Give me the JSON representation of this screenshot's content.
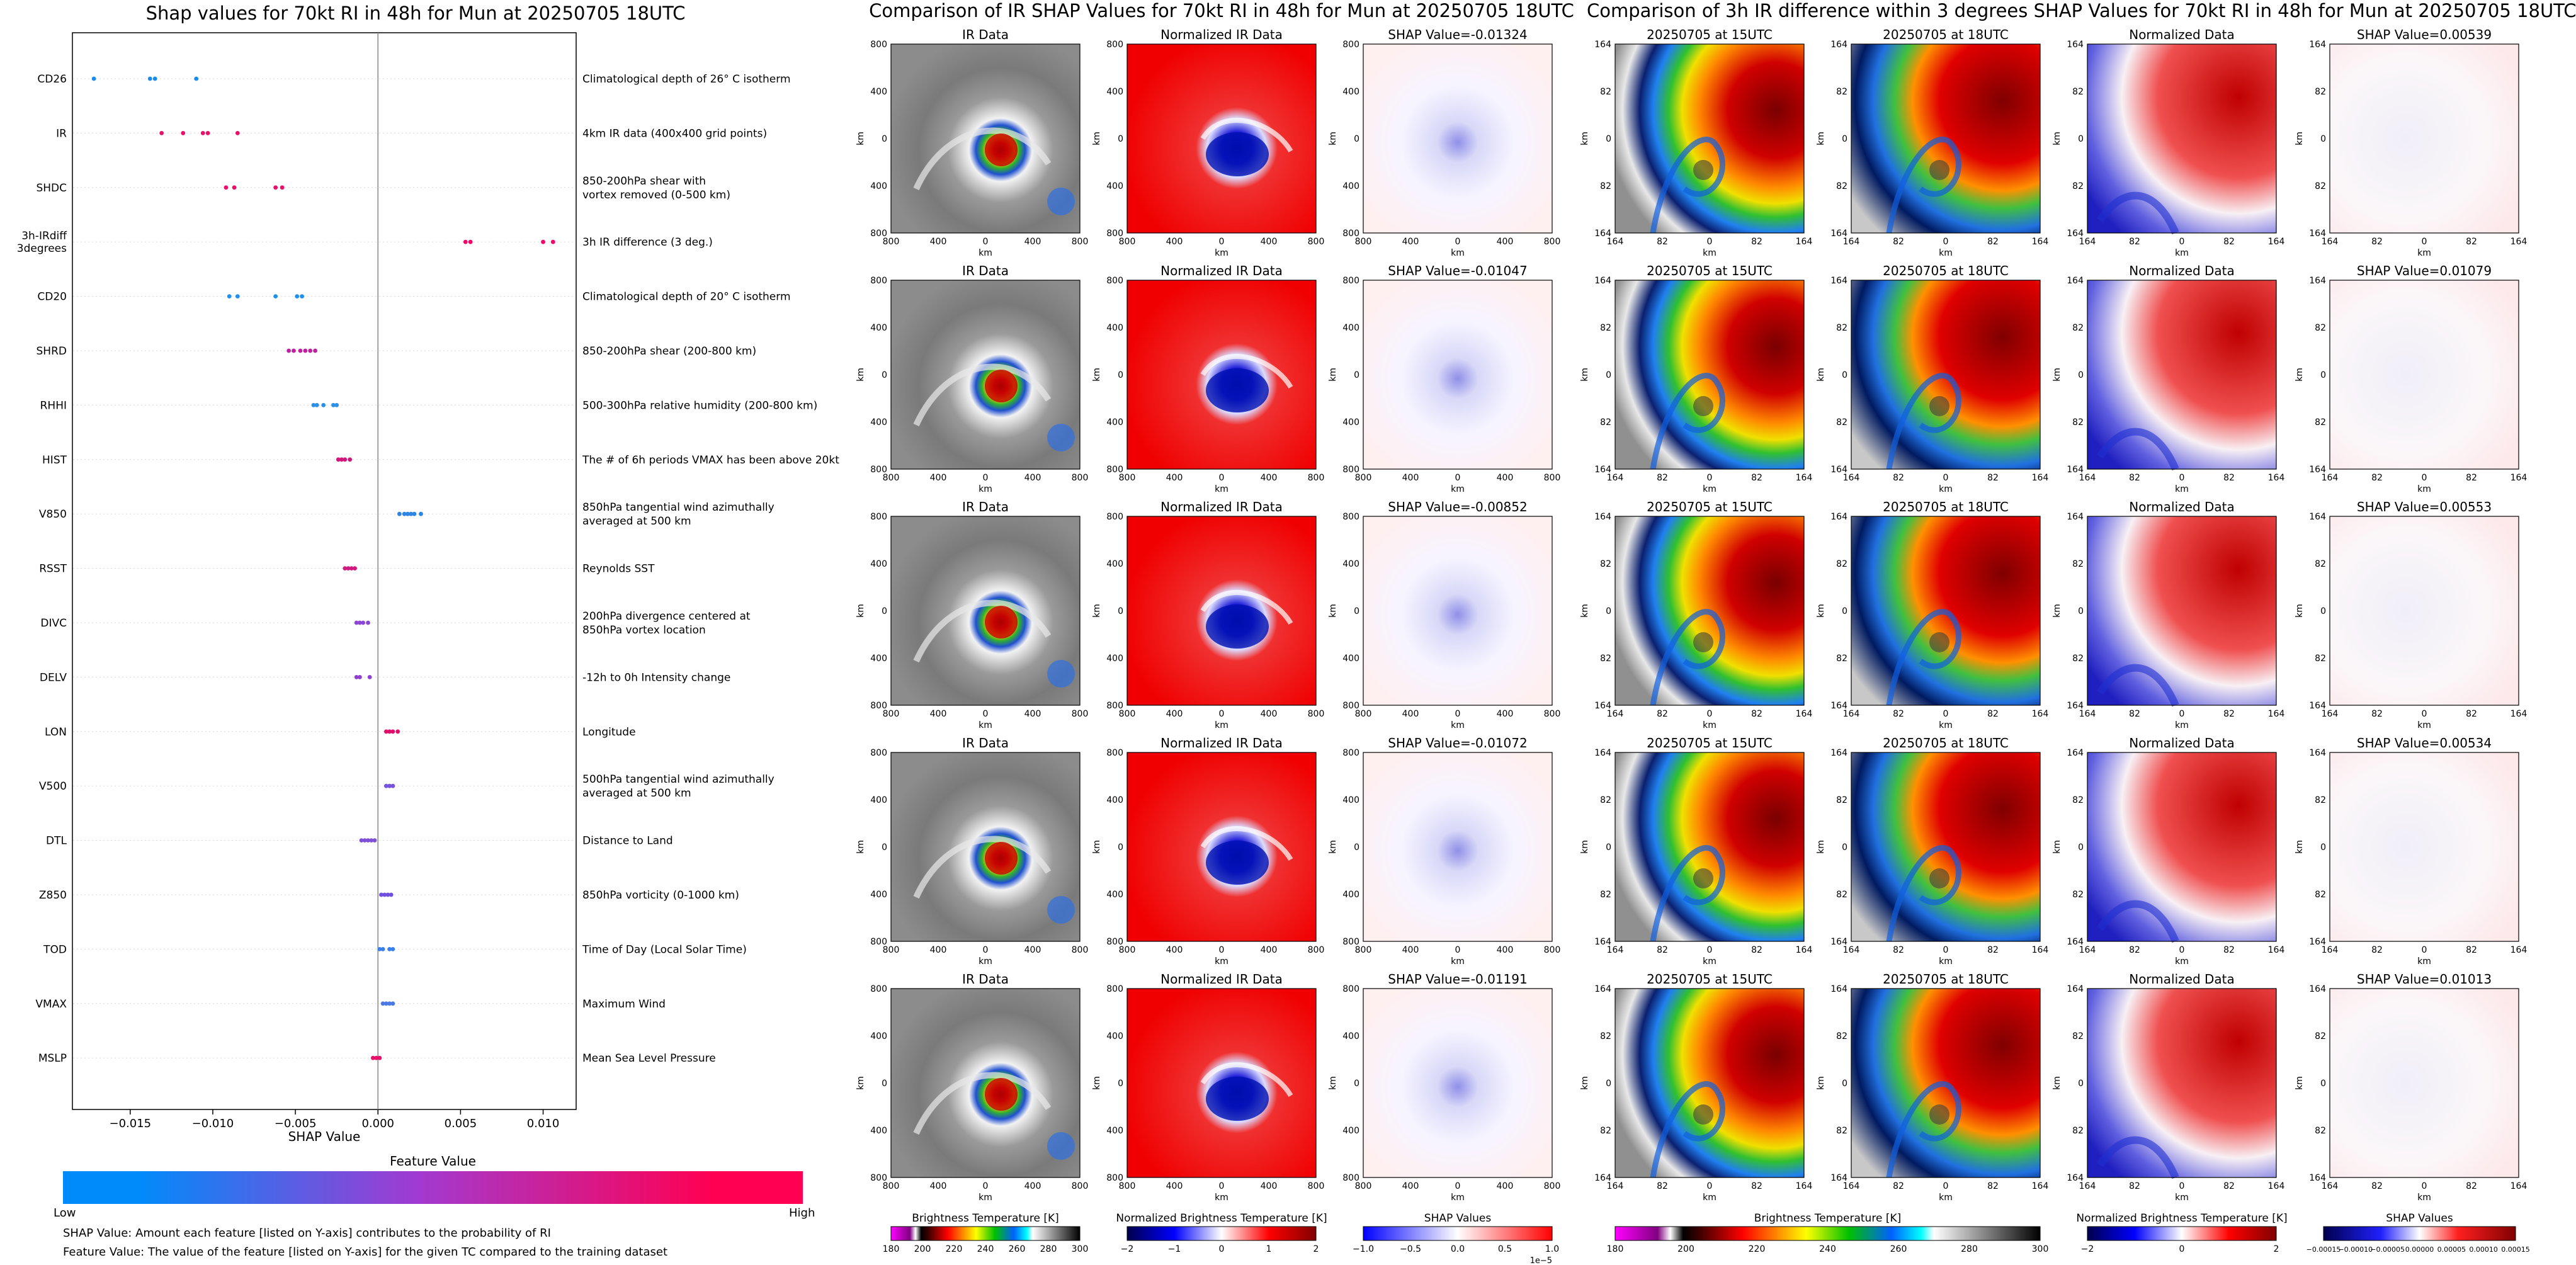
{
  "shap_title": "Shap values for 70kt RI in 48h for Mun at 20250705 18UTC",
  "ir_title": "Comparison of IR SHAP Values for 70kt RI in 48h for Mun at 20250705 18UTC",
  "diff_title": "Comparison of 3h IR difference within 3 degrees SHAP Values for 70kt RI in 48h for Mun at 20250705 18UTC",
  "feature_value_label": "Feature Value",
  "low_label": "Low",
  "high_label": "High",
  "note1": "SHAP Value: Amount each feature [listed on Y-axis] contributes to the probability of RI",
  "note2": "Feature Value: The value of the feature [listed on Y-axis] for the given TC compared to the training dataset",
  "colors": {
    "low": "#008bfb",
    "mid": "#a23ad0",
    "high": "#ff0052"
  },
  "chart_data": [
    {
      "type": "scatter",
      "title": "Shap values for 70kt RI in 48h for Mun at 20250705 18UTC",
      "xlabel": "SHAP Value",
      "xlim": [
        -0.0185,
        0.012
      ],
      "xticks": [
        -0.015,
        -0.01,
        -0.005,
        0.0,
        0.005,
        0.01
      ],
      "xtick_labels": [
        "−0.015",
        "−0.010",
        "−0.005",
        "0.000",
        "0.005",
        "0.010"
      ],
      "features": [
        {
          "name": "CD26",
          "desc": [
            "Climatological depth of 26° C isotherm"
          ],
          "color": "#1a8cf0",
          "x": [
            -0.0172,
            -0.0138,
            -0.0135,
            -0.011
          ]
        },
        {
          "name": "IR",
          "desc": [
            "4km IR data (400x400 grid points)"
          ],
          "color": "#e8106a",
          "x": [
            -0.0131,
            -0.0118,
            -0.0106,
            -0.0103,
            -0.0085
          ]
        },
        {
          "name": "SHDC",
          "desc": [
            "850-200hPa shear with",
            "vortex removed (0-500 km)"
          ],
          "color": "#e8106a",
          "x": [
            -0.0092,
            -0.0087,
            -0.0062,
            -0.0058
          ]
        },
        {
          "name": [
            "3h-IRdiff",
            "3degrees"
          ],
          "desc": [
            "3h IR difference (3 deg.)"
          ],
          "color": "#f0086a",
          "x": [
            0.0053,
            0.0056,
            0.01,
            0.0106
          ]
        },
        {
          "name": "CD20",
          "desc": [
            "Climatological depth of 20° C isotherm"
          ],
          "color": "#2090ec",
          "x": [
            -0.009,
            -0.0085,
            -0.0062,
            -0.0049,
            -0.0046
          ]
        },
        {
          "name": "SHRD",
          "desc": [
            "850-200hPa shear (200-800 km)"
          ],
          "color": "#c020a0",
          "x": [
            -0.0054,
            -0.0051,
            -0.0047,
            -0.0044,
            -0.0041,
            -0.0038
          ]
        },
        {
          "name": "RHHI",
          "desc": [
            "500-300hPa relative humidity (200-800 km)"
          ],
          "color": "#2a90ea",
          "x": [
            -0.0039,
            -0.0037,
            -0.0033,
            -0.0027,
            -0.0025
          ]
        },
        {
          "name": "HIST",
          "desc": [
            "The # of 6h periods VMAX has been above 20kt"
          ],
          "color": "#d0187c",
          "x": [
            -0.0024,
            -0.0022,
            -0.002,
            -0.0017
          ]
        },
        {
          "name": "V850",
          "desc": [
            "850hPa tangential wind azimuthally",
            "averaged at 500 km"
          ],
          "color": "#2d85e6",
          "x": [
            0.0013,
            0.0016,
            0.0018,
            0.002,
            0.0022,
            0.0026
          ]
        },
        {
          "name": "RSST",
          "desc": [
            "Reynolds SST"
          ],
          "color": "#d01a80",
          "x": [
            -0.002,
            -0.0018,
            -0.0016,
            -0.0014
          ]
        },
        {
          "name": "DIVC",
          "desc": [
            "200hPa divergence centered at",
            "850hPa vortex location"
          ],
          "color": "#8d45d6",
          "x": [
            -0.0013,
            -0.0011,
            -0.0009,
            -0.0006
          ]
        },
        {
          "name": "DELV",
          "desc": [
            "-12h to 0h Intensity change"
          ],
          "color": "#9040d0",
          "x": [
            -0.0013,
            -0.0011,
            -0.0005
          ]
        },
        {
          "name": "LON",
          "desc": [
            "Longitude"
          ],
          "color": "#e0106a",
          "x": [
            0.0005,
            0.0007,
            0.0009,
            0.0012
          ]
        },
        {
          "name": "V500",
          "desc": [
            "500hPa tangential wind azimuthally",
            "averaged at 500 km"
          ],
          "color": "#7555dc",
          "x": [
            0.0005,
            0.0007,
            0.0009
          ]
        },
        {
          "name": "DTL",
          "desc": [
            "Distance to Land"
          ],
          "color": "#8050d8",
          "x": [
            -0.001,
            -0.0008,
            -0.0006,
            -0.0004,
            -0.0002
          ]
        },
        {
          "name": "Z850",
          "desc": [
            "850hPa vorticity (0-1000 km)"
          ],
          "color": "#7050e0",
          "x": [
            0.0002,
            0.0004,
            0.0006,
            0.0008
          ]
        },
        {
          "name": "TOD",
          "desc": [
            "Time of Day (Local Solar Time)"
          ],
          "color": "#3a80e8",
          "x": [
            0.0001,
            0.0003,
            0.0007,
            0.0009
          ]
        },
        {
          "name": "VMAX",
          "desc": [
            "Maximum Wind"
          ],
          "color": "#4a78e4",
          "x": [
            0.0003,
            0.0005,
            0.0007,
            0.0009
          ]
        },
        {
          "name": "MSLP",
          "desc": [
            "Mean Sea Level Pressure"
          ],
          "color": "#e8106a",
          "x": [
            -0.0003,
            -0.0001,
            0.0001
          ]
        }
      ]
    },
    {
      "type": "heatmap",
      "title": "Comparison of IR SHAP Values for 70kt RI in 48h for Mun at 20250705 18UTC",
      "columns": [
        "IR Data",
        "Normalized IR Data"
      ],
      "shap_values": [
        "SHAP Value=-0.01324",
        "SHAP Value=-0.01047",
        "SHAP Value=-0.00852",
        "SHAP Value=-0.01072",
        "SHAP Value=-0.01191"
      ],
      "xticks": [
        "800",
        "400",
        "0",
        "400",
        "800"
      ],
      "yticks": [
        "800",
        "400",
        "0",
        "400",
        "800"
      ],
      "axis_label": "km",
      "colorbars": [
        {
          "label": "Brightness Temperature [K]",
          "ticks": [
            "180",
            "200",
            "220",
            "240",
            "260",
            "280",
            "300"
          ]
        },
        {
          "label": "Normalized Brightness Temperature [K]",
          "ticks": [
            "−2",
            "−1",
            "0",
            "1",
            "2"
          ]
        },
        {
          "label": "SHAP Values",
          "ticks": [
            "−1.0",
            "−0.5",
            "0.0",
            "0.5",
            "1.0"
          ],
          "scale_note": "1e−5"
        }
      ]
    },
    {
      "type": "heatmap",
      "title": "Comparison of 3h IR difference within 3 degrees SHAP Values for 70kt RI in 48h for Mun at 20250705 18UTC",
      "columns": [
        "20250705 at 15UTC",
        "20250705 at 18UTC",
        "Normalized Data"
      ],
      "shap_values": [
        "SHAP Value=0.00539",
        "SHAP Value=0.01079",
        "SHAP Value=0.00553",
        "SHAP Value=0.00534",
        "SHAP Value=0.01013"
      ],
      "xticks": [
        "164",
        "82",
        "0",
        "82",
        "164"
      ],
      "yticks": [
        "164",
        "82",
        "0",
        "82",
        "164"
      ],
      "axis_label": "km",
      "colorbars": [
        {
          "label": "Brightness Temperature [K]",
          "ticks": [
            "180",
            "200",
            "220",
            "240",
            "260",
            "280",
            "300"
          ]
        },
        {
          "label": "Normalized Brightness Temperature [K]",
          "ticks": [
            "−2",
            "0",
            "2"
          ]
        },
        {
          "label": "SHAP Values",
          "ticks": [
            "−0.00015",
            "−0.00010",
            "−0.00005",
            "0.00000",
            "0.00005",
            "0.00010",
            "0.00015"
          ]
        }
      ]
    }
  ]
}
